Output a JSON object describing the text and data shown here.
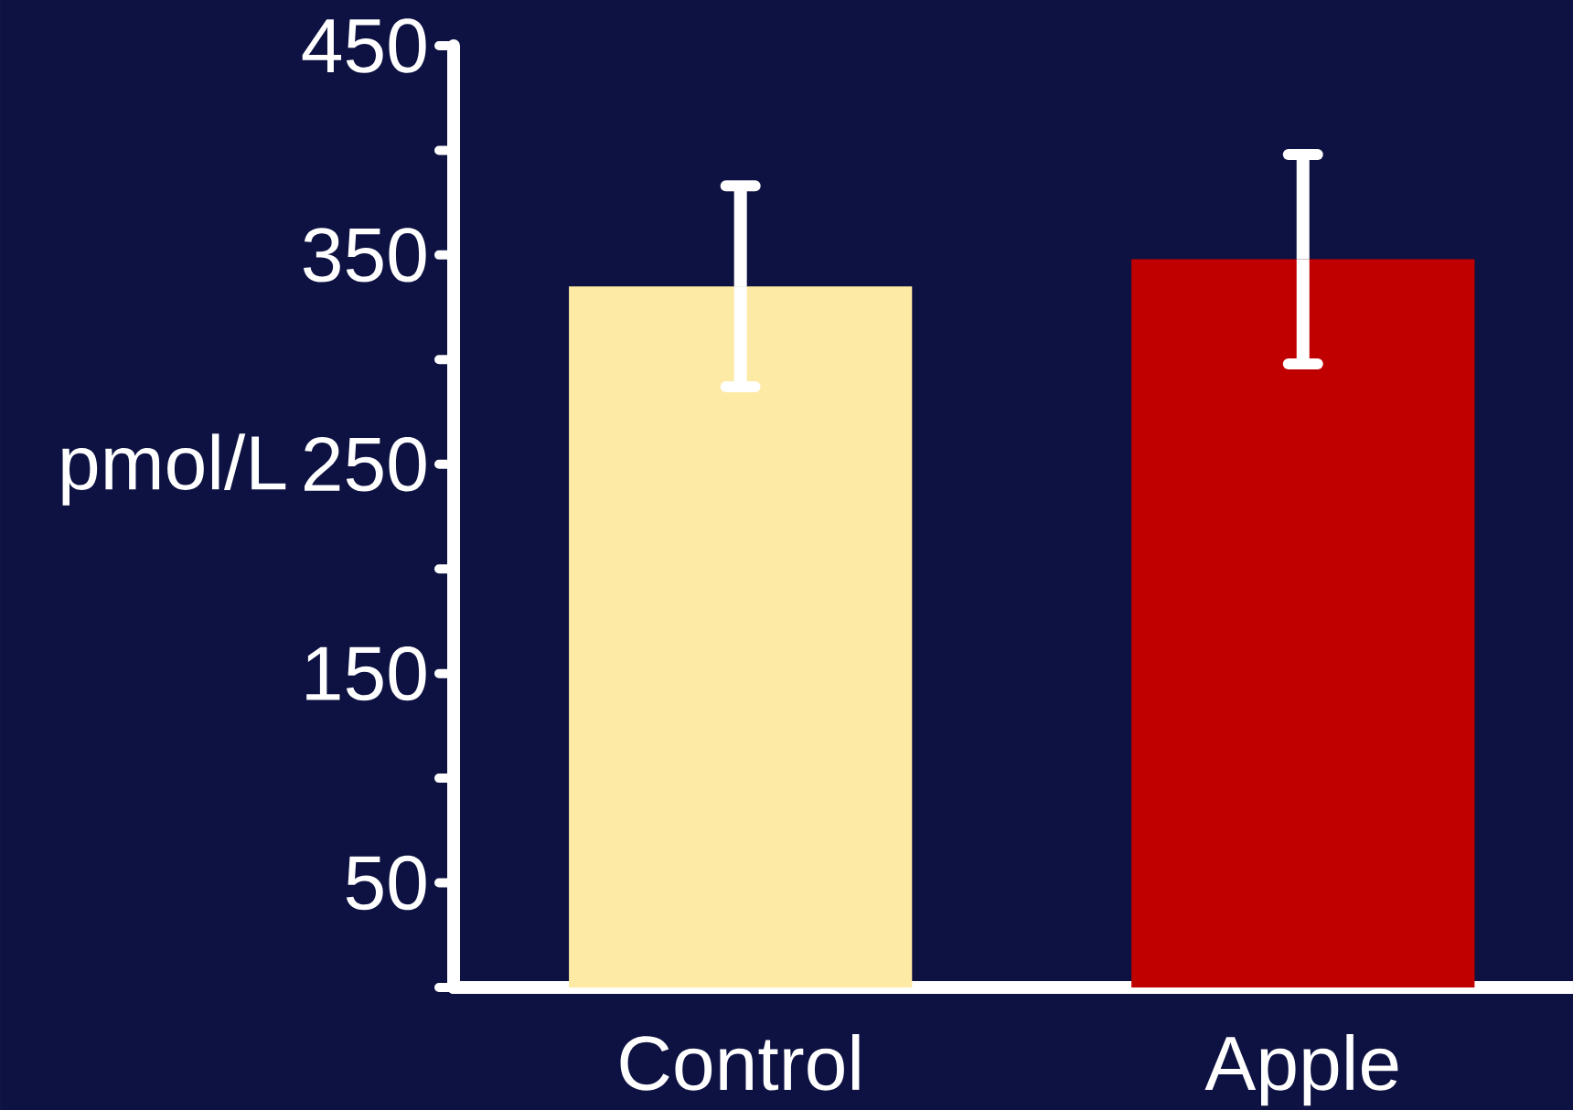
{
  "chart_data": {
    "type": "bar",
    "ylabel": "pmol/L",
    "categories": [
      "Control",
      "Apple"
    ],
    "values": [
      335,
      348
    ],
    "colors": [
      "#fdeaa4",
      "#c00000"
    ],
    "errors": [
      48,
      50
    ],
    "ylim": [
      0,
      450
    ],
    "yticks": [
      {
        "value": 0,
        "label": null
      },
      50,
      {
        "value": 100,
        "label": null
      },
      150,
      {
        "value": 200,
        "label": null
      },
      250,
      {
        "value": 300,
        "label": null
      },
      350,
      {
        "value": 400,
        "label": null
      },
      450
    ]
  }
}
